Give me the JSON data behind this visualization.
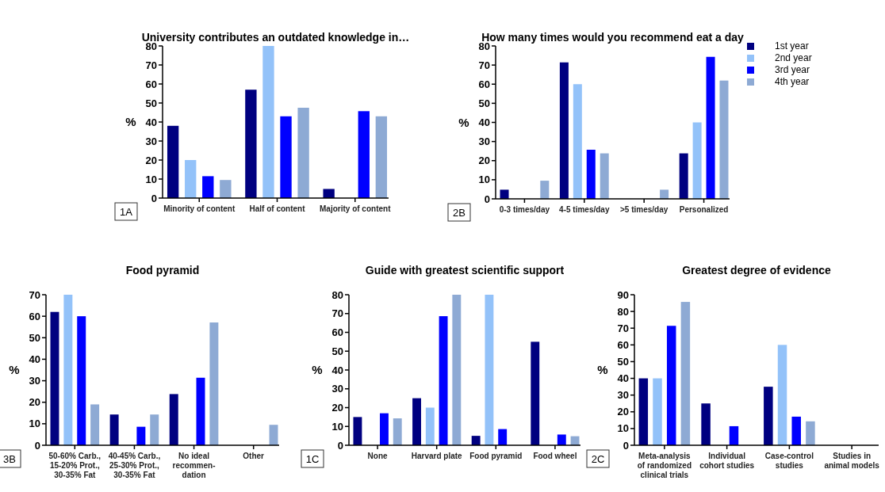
{
  "chart_data": [
    {
      "type": "bar",
      "title": "University contributes an outdated knowledge in…",
      "ylabel": "%",
      "annotations": [
        "1A"
      ],
      "categories": [
        "Minority of content",
        "Half of content",
        "Majority of content"
      ],
      "ylim": [
        0,
        80
      ],
      "yticks": [
        0,
        10,
        20,
        30,
        40,
        50,
        60,
        70,
        80
      ],
      "grid": false,
      "legend": false,
      "series": [
        {
          "color": "#000080",
          "values": [
            38,
            57,
            4.8
          ]
        },
        {
          "color": "#93c2f9",
          "values": [
            20,
            80,
            0
          ]
        },
        {
          "color": "#0000ff",
          "values": [
            11.5,
            43,
            45.7
          ]
        },
        {
          "color": "#8eaad4",
          "values": [
            9.5,
            47.5,
            43
          ]
        }
      ]
    },
    {
      "type": "bar",
      "title": "How many times would you recommend eat a day",
      "ylabel": "%",
      "annotations": [
        "2B"
      ],
      "categories": [
        "0-3 times/day",
        "4-5 times/day",
        ">5 times/day",
        "Personalized"
      ],
      "ylim": [
        0,
        80
      ],
      "yticks": [
        0,
        10,
        20,
        30,
        40,
        50,
        60,
        70,
        80
      ],
      "grid": false,
      "legend": "top right",
      "series": [
        {
          "name": "1st year",
          "color": "#000080",
          "values": [
            4.8,
            71.4,
            0,
            23.8
          ]
        },
        {
          "name": "2nd year",
          "color": "#93c2f9",
          "values": [
            0,
            60,
            0,
            40
          ]
        },
        {
          "name": "3rd year",
          "color": "#0000ff",
          "values": [
            0,
            25.7,
            0,
            74.3
          ]
        },
        {
          "name": "4th year",
          "color": "#8eaad4",
          "values": [
            9.5,
            23.8,
            4.8,
            61.9
          ]
        }
      ]
    },
    {
      "type": "bar",
      "title": "Food pyramid",
      "ylabel": "%",
      "annotations": [
        "3B"
      ],
      "categories": [
        "50-60% Carb.,\n15-20% Prot.,\n30-35% Fat",
        "40-45% Carb.,\n25-30% Prot.,\n30-35% Fat",
        "No ideal\nrecommen-\ndation",
        "Other"
      ],
      "ylim": [
        0,
        70
      ],
      "yticks": [
        0,
        10,
        20,
        30,
        40,
        50,
        60,
        70
      ],
      "grid": false,
      "legend": false,
      "series": [
        {
          "color": "#000080",
          "values": [
            62,
            14.3,
            23.8,
            0
          ]
        },
        {
          "color": "#93c2f9",
          "values": [
            70,
            0,
            0,
            0
          ]
        },
        {
          "color": "#0000ff",
          "values": [
            60,
            8.6,
            31.4,
            0
          ]
        },
        {
          "color": "#8eaad4",
          "values": [
            19,
            14.3,
            57.1,
            9.5
          ]
        }
      ]
    },
    {
      "type": "bar",
      "title": "Guide with greatest scientific support",
      "ylabel": "%",
      "annotations": [
        "1C"
      ],
      "categories": [
        "None",
        "Harvard plate",
        "Food pyramid",
        "Food wheel"
      ],
      "ylim": [
        0,
        80
      ],
      "yticks": [
        0,
        10,
        20,
        30,
        40,
        50,
        60,
        70,
        80
      ],
      "grid": false,
      "legend": false,
      "series": [
        {
          "color": "#000080",
          "values": [
            15,
            25,
            5,
            55
          ]
        },
        {
          "color": "#93c2f9",
          "values": [
            0,
            20,
            80,
            0
          ]
        },
        {
          "color": "#0000ff",
          "values": [
            17,
            68.6,
            8.6,
            5.7
          ]
        },
        {
          "color": "#8eaad4",
          "values": [
            14.3,
            80,
            0,
            4.8
          ]
        }
      ]
    },
    {
      "type": "bar",
      "title": "Greatest degree of evidence",
      "ylabel": "%",
      "annotations": [
        "2C"
      ],
      "categories": [
        "Meta-analysis\nof randomized\nclinical trials",
        "Individual\ncohort studies",
        "Case-control\nstudies",
        "Studies in\nanimal models"
      ],
      "ylim": [
        0,
        90
      ],
      "yticks": [
        0,
        10,
        20,
        30,
        40,
        50,
        60,
        70,
        80,
        90
      ],
      "grid": false,
      "legend": false,
      "series": [
        {
          "color": "#000080",
          "values": [
            40,
            25,
            35,
            0
          ]
        },
        {
          "color": "#93c2f9",
          "values": [
            40,
            0,
            60,
            0
          ]
        },
        {
          "color": "#0000ff",
          "values": [
            71.4,
            11.4,
            17.1,
            0
          ]
        },
        {
          "color": "#8eaad4",
          "values": [
            85.7,
            0,
            14.3,
            0
          ]
        }
      ]
    }
  ]
}
